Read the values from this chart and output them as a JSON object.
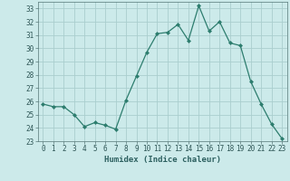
{
  "x": [
    0,
    1,
    2,
    3,
    4,
    5,
    6,
    7,
    8,
    9,
    10,
    11,
    12,
    13,
    14,
    15,
    16,
    17,
    18,
    19,
    20,
    21,
    22,
    23
  ],
  "y": [
    25.8,
    25.6,
    25.6,
    25.0,
    24.1,
    24.4,
    24.2,
    23.9,
    26.1,
    27.9,
    29.7,
    31.1,
    31.2,
    31.8,
    30.6,
    33.2,
    31.3,
    32.0,
    30.4,
    30.2,
    27.5,
    25.8,
    24.3,
    23.2
  ],
  "line_color": "#2d7d6e",
  "marker": "D",
  "marker_size": 2.0,
  "bg_color": "#cceaea",
  "grid_color": "#aacece",
  "xlabel": "Humidex (Indice chaleur)",
  "ylim": [
    23,
    33.5
  ],
  "xlim": [
    -0.5,
    23.5
  ],
  "yticks": [
    23,
    24,
    25,
    26,
    27,
    28,
    29,
    30,
    31,
    32,
    33
  ],
  "xticks": [
    0,
    1,
    2,
    3,
    4,
    5,
    6,
    7,
    8,
    9,
    10,
    11,
    12,
    13,
    14,
    15,
    16,
    17,
    18,
    19,
    20,
    21,
    22,
    23
  ],
  "tick_fontsize": 5.5,
  "label_fontsize": 6.5,
  "linewidth": 0.9
}
